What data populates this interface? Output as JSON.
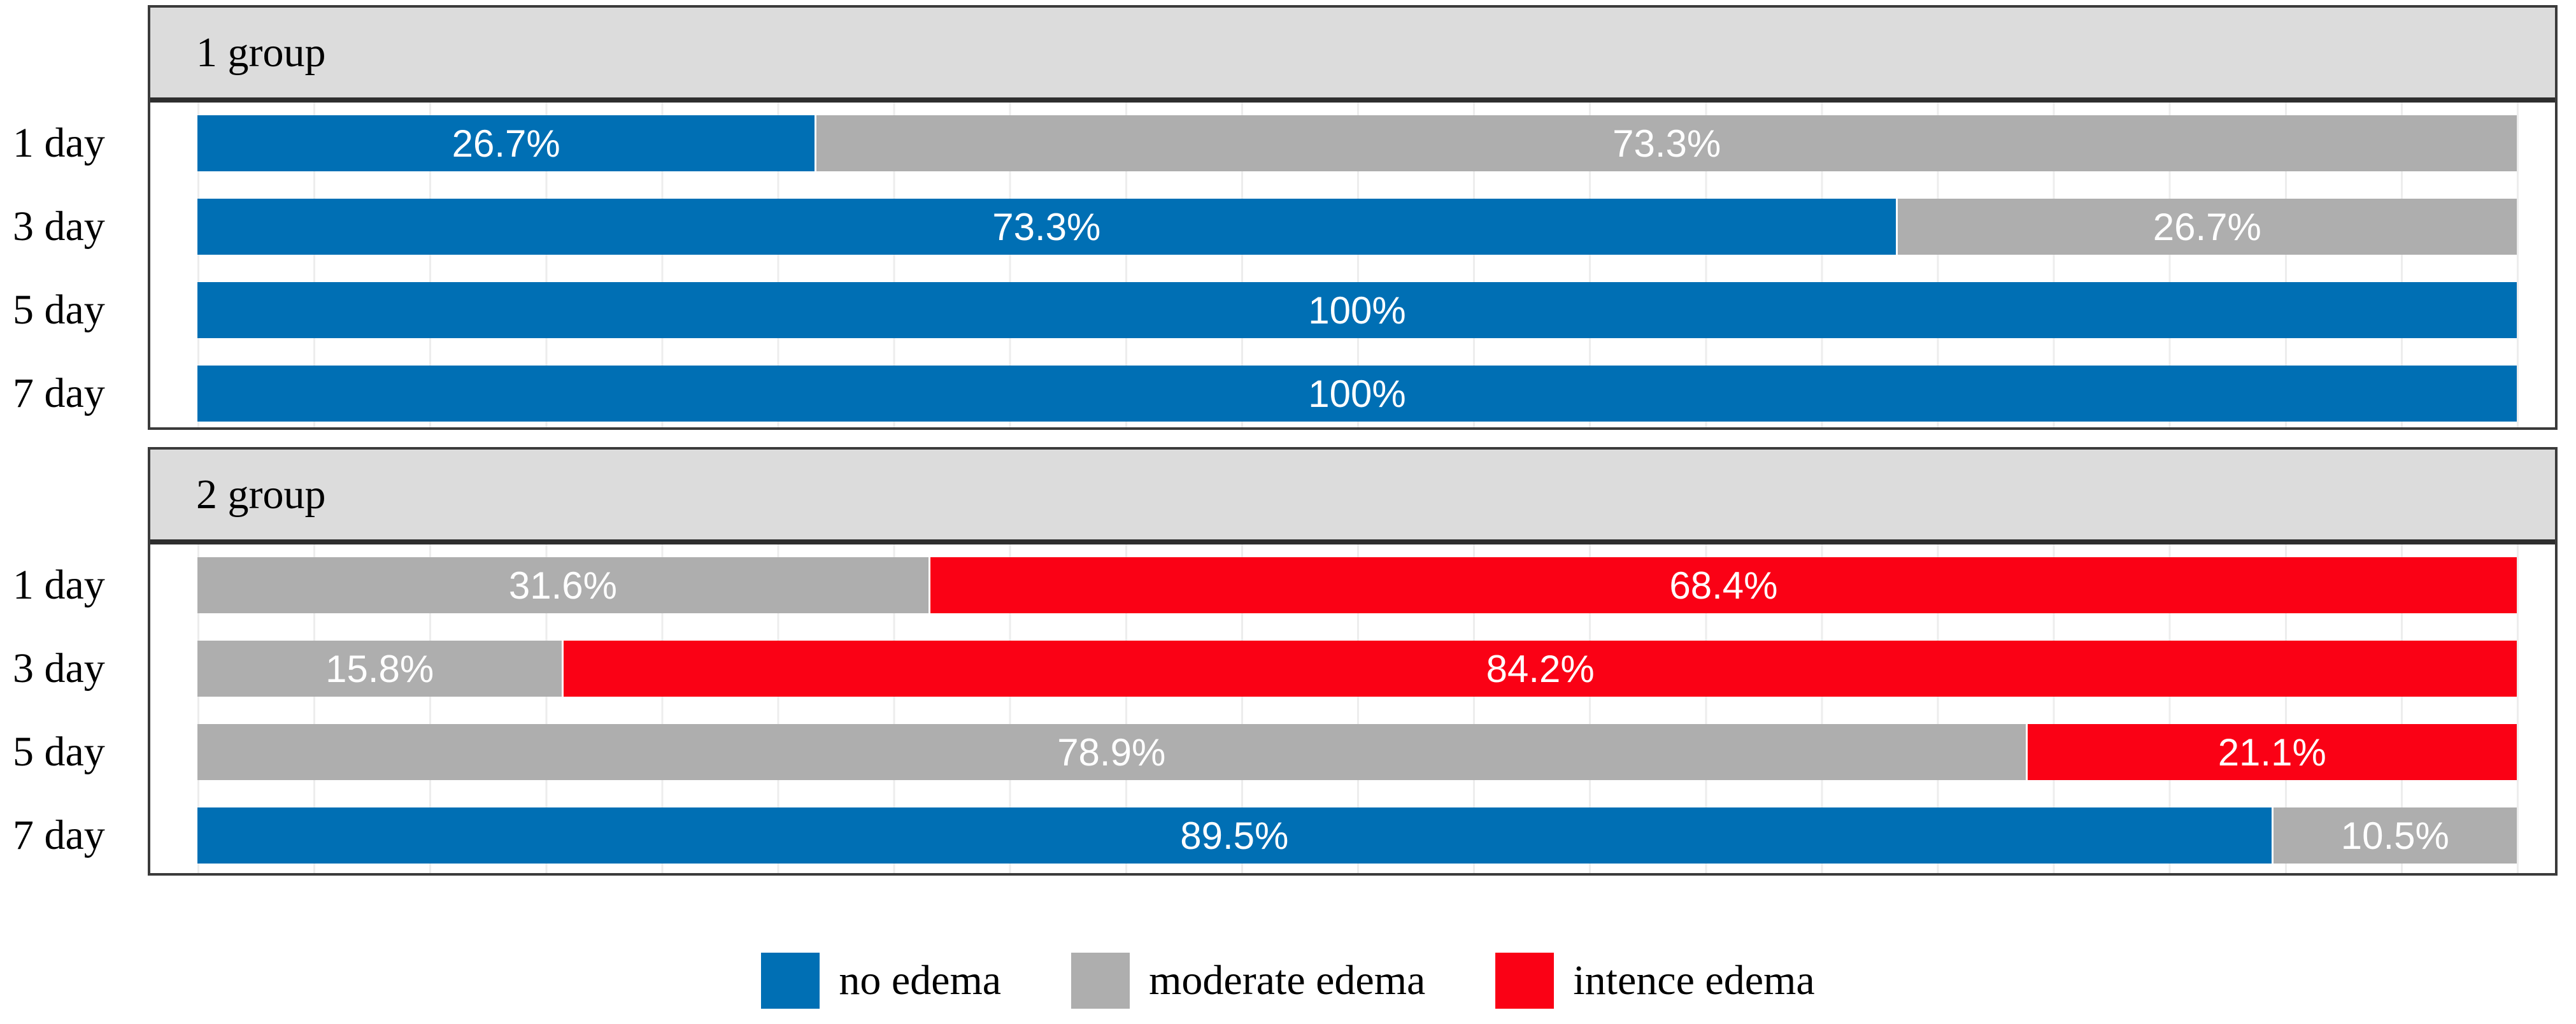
{
  "chart_data": {
    "type": "bar",
    "orientation": "horizontal-stacked",
    "x_axis": {
      "min": 0,
      "max": 100,
      "unit": "%",
      "gridline_step_pct": 5,
      "gridlines_visible": true,
      "tick_labels_visible": false
    },
    "panels": [
      {
        "title": "1 group",
        "rows": [
          {
            "label": "1 day",
            "segments": [
              {
                "series": "no edema",
                "value": 26.7,
                "label": "26.7%"
              },
              {
                "series": "moderate edema",
                "value": 73.3,
                "label": "73.3%"
              }
            ]
          },
          {
            "label": "3 day",
            "segments": [
              {
                "series": "no edema",
                "value": 73.3,
                "label": "73.3%"
              },
              {
                "series": "moderate edema",
                "value": 26.7,
                "label": "26.7%"
              }
            ]
          },
          {
            "label": "5 day",
            "segments": [
              {
                "series": "no edema",
                "value": 100,
                "label": "100%"
              }
            ]
          },
          {
            "label": "7 day",
            "segments": [
              {
                "series": "no edema",
                "value": 100,
                "label": "100%"
              }
            ]
          }
        ]
      },
      {
        "title": "2 group",
        "rows": [
          {
            "label": "1 day",
            "segments": [
              {
                "series": "moderate edema",
                "value": 31.6,
                "label": "31.6%"
              },
              {
                "series": "intence edema",
                "value": 68.4,
                "label": "68.4%"
              }
            ]
          },
          {
            "label": "3 day",
            "segments": [
              {
                "series": "moderate edema",
                "value": 15.8,
                "label": "15.8%"
              },
              {
                "series": "intence edema",
                "value": 84.2,
                "label": "84.2%"
              }
            ]
          },
          {
            "label": "5 day",
            "segments": [
              {
                "series": "moderate edema",
                "value": 78.9,
                "label": "78.9%"
              },
              {
                "series": "intence edema",
                "value": 21.1,
                "label": "21.1%"
              }
            ]
          },
          {
            "label": "7 day",
            "segments": [
              {
                "series": "no edema",
                "value": 89.5,
                "label": "89.5%"
              },
              {
                "series": "moderate edema",
                "value": 10.5,
                "label": "10.5%"
              }
            ]
          }
        ]
      }
    ],
    "legend": {
      "position": "bottom-center",
      "items": [
        {
          "label": "no edema",
          "color": "#006fb4"
        },
        {
          "label": "moderate edema",
          "color": "#aeaeae"
        },
        {
          "label": "intence edema",
          "color": "#fa0115"
        }
      ]
    },
    "colors": {
      "header_bg": "#dcdcdc",
      "panel_border": "#3b3b3b",
      "gridline": "#ededed",
      "segment_label_text": "#ffffff"
    }
  }
}
